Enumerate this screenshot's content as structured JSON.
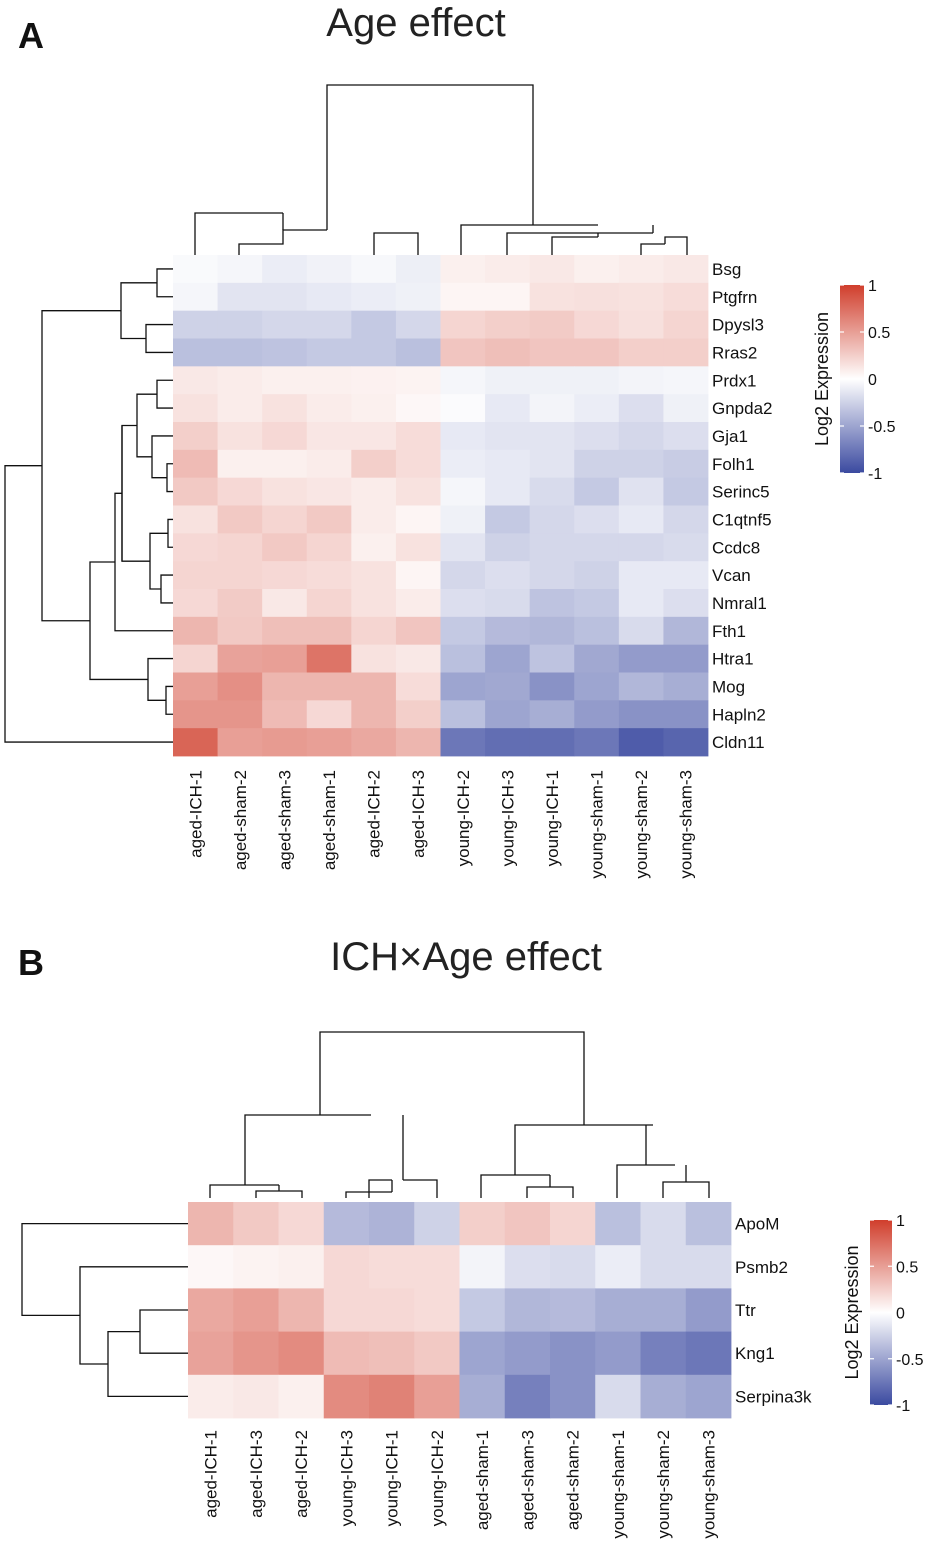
{
  "chart_data": [
    {
      "panel": "A",
      "type": "heatmap",
      "title": "Age effect",
      "legend_title": "Log2 Expression",
      "legend_ticks": [
        "1",
        "0.5",
        "0",
        "-0.5",
        "-1"
      ],
      "legend_tick_values": [
        1,
        0.5,
        0,
        -0.5,
        -1
      ],
      "value_range": [
        -1,
        1
      ],
      "colors": {
        "low": "#3b4aa0",
        "mid": "#ffffff",
        "high": "#d03e2c"
      },
      "columns": [
        "aged-ICH-1",
        "aged-sham-2",
        "aged-sham-3",
        "aged-sham-1",
        "aged-ICH-2",
        "aged-ICH-3",
        "young-ICH-2",
        "young-ICH-3",
        "young-ICH-1",
        "young-sham-1",
        "young-sham-2",
        "young-sham-3"
      ],
      "rows": [
        "Bsg",
        "Ptgfrn",
        "Dpysl3",
        "Rras2",
        "Prdx1",
        "Gnpda2",
        "Gja1",
        "Folh1",
        "Serinc5",
        "C1qtnf5",
        "Ccdc8",
        "Vcan",
        "Nmral1",
        "Fth1",
        "Htra1",
        "Mog",
        "Hapln2",
        "Cldn11"
      ],
      "values": [
        [
          -0.03,
          -0.05,
          -0.1,
          -0.07,
          -0.04,
          -0.09,
          0.08,
          0.1,
          0.12,
          0.08,
          0.1,
          0.12
        ],
        [
          -0.05,
          -0.15,
          -0.15,
          -0.12,
          -0.1,
          -0.08,
          0.05,
          0.05,
          0.15,
          0.16,
          0.15,
          0.18
        ],
        [
          -0.25,
          -0.25,
          -0.22,
          -0.22,
          -0.3,
          -0.22,
          0.22,
          0.25,
          0.27,
          0.2,
          0.16,
          0.22
        ],
        [
          -0.35,
          -0.35,
          -0.33,
          -0.3,
          -0.3,
          -0.35,
          0.3,
          0.33,
          0.3,
          0.3,
          0.25,
          0.25
        ],
        [
          0.12,
          0.1,
          0.08,
          0.08,
          0.07,
          0.06,
          -0.05,
          -0.08,
          -0.08,
          -0.08,
          -0.06,
          -0.05
        ],
        [
          0.15,
          0.1,
          0.15,
          0.1,
          0.08,
          0.04,
          -0.02,
          -0.12,
          -0.06,
          -0.1,
          -0.18,
          -0.08
        ],
        [
          0.25,
          0.15,
          0.2,
          0.13,
          0.13,
          0.18,
          -0.12,
          -0.15,
          -0.15,
          -0.18,
          -0.22,
          -0.18
        ],
        [
          0.35,
          0.08,
          0.08,
          0.1,
          0.25,
          0.18,
          -0.1,
          -0.12,
          -0.15,
          -0.25,
          -0.25,
          -0.28
        ],
        [
          0.28,
          0.2,
          0.15,
          0.13,
          0.1,
          0.15,
          -0.05,
          -0.12,
          -0.2,
          -0.3,
          -0.16,
          -0.3
        ],
        [
          0.15,
          0.28,
          0.22,
          0.28,
          0.1,
          0.05,
          -0.08,
          -0.3,
          -0.22,
          -0.18,
          -0.12,
          -0.22
        ],
        [
          0.2,
          0.22,
          0.28,
          0.22,
          0.08,
          0.15,
          -0.15,
          -0.25,
          -0.22,
          -0.22,
          -0.22,
          -0.2
        ],
        [
          0.22,
          0.22,
          0.2,
          0.18,
          0.15,
          0.05,
          -0.22,
          -0.18,
          -0.22,
          -0.25,
          -0.12,
          -0.12
        ],
        [
          0.2,
          0.27,
          0.12,
          0.22,
          0.15,
          0.1,
          -0.18,
          -0.2,
          -0.33,
          -0.3,
          -0.12,
          -0.18
        ],
        [
          0.38,
          0.28,
          0.33,
          0.33,
          0.22,
          0.3,
          -0.3,
          -0.38,
          -0.4,
          -0.35,
          -0.2,
          -0.4
        ],
        [
          0.22,
          0.48,
          0.5,
          0.72,
          0.15,
          0.12,
          -0.35,
          -0.5,
          -0.33,
          -0.48,
          -0.55,
          -0.55
        ],
        [
          0.5,
          0.58,
          0.38,
          0.38,
          0.38,
          0.18,
          -0.5,
          -0.48,
          -0.6,
          -0.5,
          -0.4,
          -0.45
        ],
        [
          0.55,
          0.55,
          0.35,
          0.2,
          0.38,
          0.25,
          -0.35,
          -0.5,
          -0.45,
          -0.55,
          -0.6,
          -0.6
        ],
        [
          0.8,
          0.5,
          0.52,
          0.5,
          0.45,
          0.38,
          -0.75,
          -0.8,
          -0.8,
          -0.75,
          -0.9,
          -0.85
        ]
      ]
    },
    {
      "panel": "B",
      "type": "heatmap",
      "title": "ICH×Age effect",
      "legend_title": "Log2 Expression",
      "legend_ticks": [
        "1",
        "0.5",
        "0",
        "-0.5",
        "-1"
      ],
      "legend_tick_values": [
        1,
        0.5,
        0,
        -0.5,
        -1
      ],
      "value_range": [
        -1,
        1
      ],
      "colors": {
        "low": "#3b4aa0",
        "mid": "#ffffff",
        "high": "#d03e2c"
      },
      "columns": [
        "aged-ICH-1",
        "aged-ICH-3",
        "aged-ICH-2",
        "young-ICH-3",
        "young-ICH-1",
        "young-ICH-2",
        "aged-sham-1",
        "aged-sham-3",
        "aged-sham-2",
        "young-sham-1",
        "young-sham-2",
        "young-sham-3"
      ],
      "rows": [
        "ApoM",
        "Psmb2",
        "Ttr",
        "Kng1",
        "Serpina3k"
      ],
      "values": [
        [
          0.38,
          0.28,
          0.2,
          -0.38,
          -0.42,
          -0.25,
          0.25,
          0.3,
          0.22,
          -0.35,
          -0.2,
          -0.35
        ],
        [
          0.04,
          0.06,
          0.08,
          0.2,
          0.18,
          0.18,
          -0.06,
          -0.18,
          -0.2,
          -0.1,
          -0.2,
          -0.2
        ],
        [
          0.45,
          0.5,
          0.38,
          0.2,
          0.2,
          0.18,
          -0.3,
          -0.4,
          -0.38,
          -0.45,
          -0.45,
          -0.55
        ],
        [
          0.48,
          0.55,
          0.6,
          0.35,
          0.33,
          0.28,
          -0.5,
          -0.55,
          -0.6,
          -0.55,
          -0.7,
          -0.75
        ],
        [
          0.1,
          0.12,
          0.08,
          0.6,
          0.65,
          0.5,
          -0.45,
          -0.7,
          -0.6,
          -0.2,
          -0.45,
          -0.5
        ]
      ]
    }
  ],
  "panel_labels": {
    "a": "A",
    "b": "B"
  }
}
